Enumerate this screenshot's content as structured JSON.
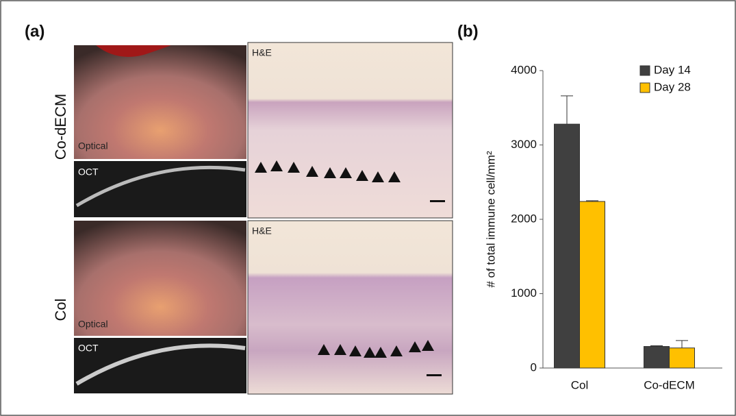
{
  "panel_a": {
    "label": "(a)",
    "rows": [
      {
        "label": "Co-dECM",
        "optical": "Optical",
        "oct": "OCT",
        "histology": "H&E"
      },
      {
        "label": "Col",
        "optical": "Optical",
        "oct": "OCT",
        "histology": "H&E"
      }
    ]
  },
  "chart_data": {
    "type": "bar",
    "panel_label": "(b)",
    "y_label": "# of total immune cell/mm²",
    "categories": [
      "Col",
      "Co-dECM"
    ],
    "series": [
      {
        "name": "Day 14",
        "color": "#404040",
        "values": [
          3280,
          290
        ],
        "errors": [
          380,
          10
        ]
      },
      {
        "name": "Day 28",
        "color": "#ffc000",
        "values": [
          2240,
          270
        ],
        "errors": [
          10,
          100
        ]
      }
    ],
    "ylim": [
      0,
      4000
    ],
    "yticks": [
      0,
      1000,
      2000,
      3000,
      4000
    ],
    "legend": "upper right"
  }
}
